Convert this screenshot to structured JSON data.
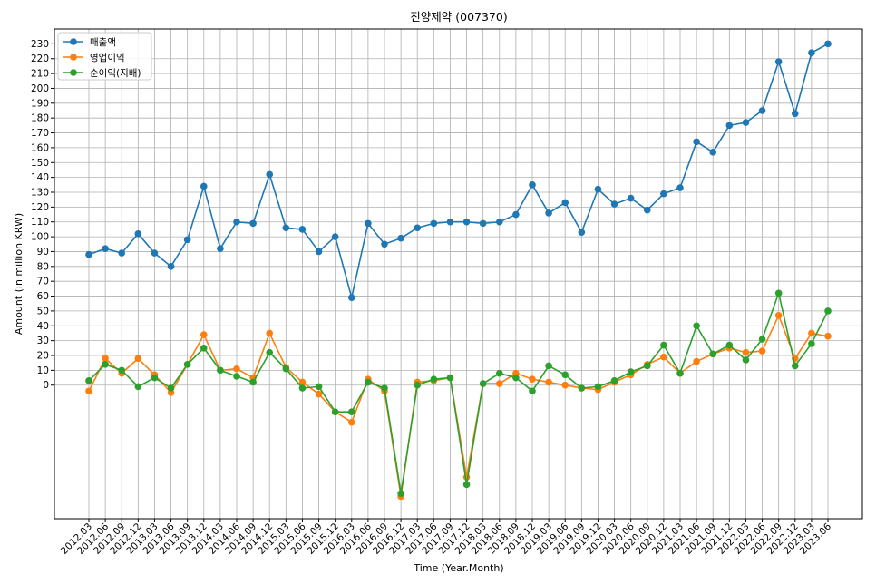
{
  "chart_data": {
    "type": "line",
    "title": "진양제약 (007370)",
    "xlabel": "Time (Year.Month)",
    "ylabel": "Amount (in million KRW)",
    "grid": true,
    "legend_position": "top-left",
    "y_ticks": [
      0,
      10,
      20,
      30,
      40,
      50,
      60,
      70,
      80,
      90,
      100,
      110,
      120,
      130,
      140,
      150,
      160,
      170,
      180,
      190,
      200,
      210,
      220,
      230
    ],
    "ylim": [
      -90,
      240
    ],
    "categories": [
      "2012.03",
      "2012.06",
      "2012.09",
      "2012.12",
      "2013.03",
      "2013.06",
      "2013.09",
      "2013.12",
      "2014.03",
      "2014.06",
      "2014.09",
      "2014.12",
      "2015.03",
      "2015.06",
      "2015.09",
      "2015.12",
      "2016.03",
      "2016.06",
      "2016.09",
      "2016.12",
      "2017.03",
      "2017.06",
      "2017.09",
      "2017.12",
      "2018.03",
      "2018.06",
      "2018.09",
      "2018.12",
      "2019.03",
      "2019.06",
      "2019.09",
      "2019.12",
      "2020.03",
      "2020.06",
      "2020.09",
      "2020.12",
      "2021.03",
      "2021.06",
      "2021.09",
      "2021.12",
      "2022.03",
      "2022.06",
      "2022.09",
      "2022.12",
      "2023.03",
      "2023.06"
    ],
    "series": [
      {
        "name": "매출액",
        "color": "#1f77b4",
        "values": [
          88,
          92,
          89,
          102,
          89,
          80,
          98,
          134,
          92,
          110,
          109,
          142,
          106,
          105,
          90,
          100,
          59,
          109,
          95,
          99,
          106,
          109,
          110,
          110,
          109,
          110,
          115,
          135,
          116,
          123,
          103,
          132,
          122,
          126,
          118,
          129,
          133,
          164,
          157,
          175,
          177,
          185,
          218,
          183,
          224,
          230
        ]
      },
      {
        "name": "영업이익",
        "color": "#ff7f0e",
        "values": [
          -4,
          18,
          8,
          18,
          7,
          -5,
          14,
          34,
          10,
          11,
          5,
          35,
          12,
          2,
          -6,
          -18,
          -25,
          4,
          -4,
          -75,
          2,
          3,
          5,
          -62,
          1,
          1,
          8,
          4,
          2,
          0,
          -2,
          -3,
          2,
          7,
          14,
          19,
          8,
          16,
          21,
          25,
          22,
          23,
          47,
          18,
          35,
          33
        ]
      },
      {
        "name": "순이익(지배)",
        "color": "#2ca02c",
        "values": [
          3,
          14,
          10,
          -1,
          5,
          -2,
          14,
          25,
          10,
          6,
          2,
          22,
          11,
          -2,
          -1,
          -18,
          -18,
          2,
          -2,
          -73,
          0,
          4,
          5,
          -67,
          1,
          8,
          5,
          -4,
          13,
          7,
          -2,
          -1,
          3,
          9,
          13,
          27,
          8,
          40,
          21,
          27,
          17,
          31,
          62,
          13,
          28,
          50
        ]
      }
    ]
  }
}
